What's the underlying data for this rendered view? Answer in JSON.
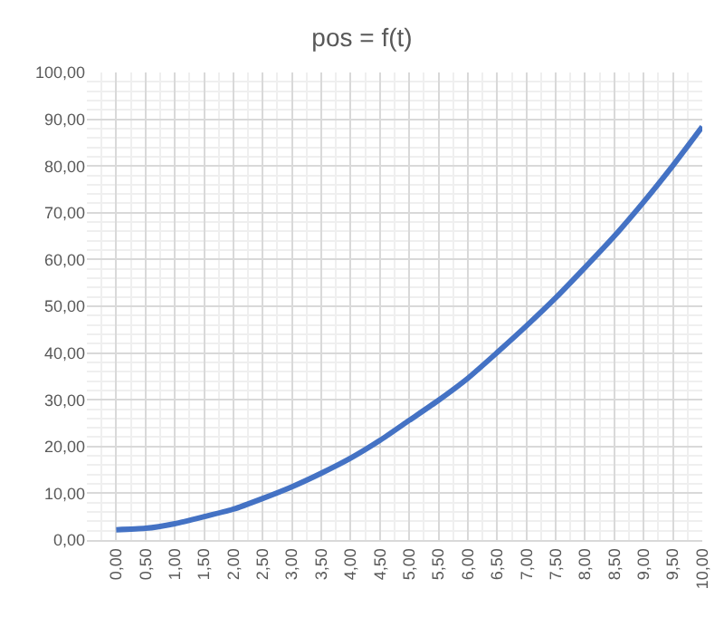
{
  "chart_data": {
    "type": "line",
    "title": "pos = f(t)",
    "categories": [
      "0,00",
      "0,50",
      "1,00",
      "1,50",
      "2,00",
      "2,50",
      "3,00",
      "3,50",
      "4,00",
      "4,50",
      "5,00",
      "5,50",
      "6,00",
      "6,50",
      "7,00",
      "7,50",
      "8,00",
      "8,50",
      "9,00",
      "9,50",
      "10,00"
    ],
    "series": [
      {
        "color": "#4472c4",
        "values": [
          2.2,
          2.5,
          3.5,
          5.0,
          6.6,
          8.9,
          11.4,
          14.3,
          17.5,
          21.3,
          25.6,
          29.9,
          34.6,
          40.1,
          45.8,
          51.8,
          58.3,
          65.0,
          72.3,
          80.1,
          88.4
        ]
      }
    ],
    "ylim": [
      0,
      100
    ],
    "yticks": [
      {
        "value": 0,
        "label": "0,00"
      },
      {
        "value": 10,
        "label": "10,00"
      },
      {
        "value": 20,
        "label": "20,00"
      },
      {
        "value": 30,
        "label": "30,00"
      },
      {
        "value": 40,
        "label": "40,00"
      },
      {
        "value": 50,
        "label": "50,00"
      },
      {
        "value": 60,
        "label": "60,00"
      },
      {
        "value": 70,
        "label": "70,00"
      },
      {
        "value": 80,
        "label": "80,00"
      },
      {
        "value": 90,
        "label": "90,00"
      },
      {
        "value": 100,
        "label": "100,00"
      }
    ],
    "grid": true,
    "marker": "none",
    "line_style": "solid",
    "legend": false
  }
}
